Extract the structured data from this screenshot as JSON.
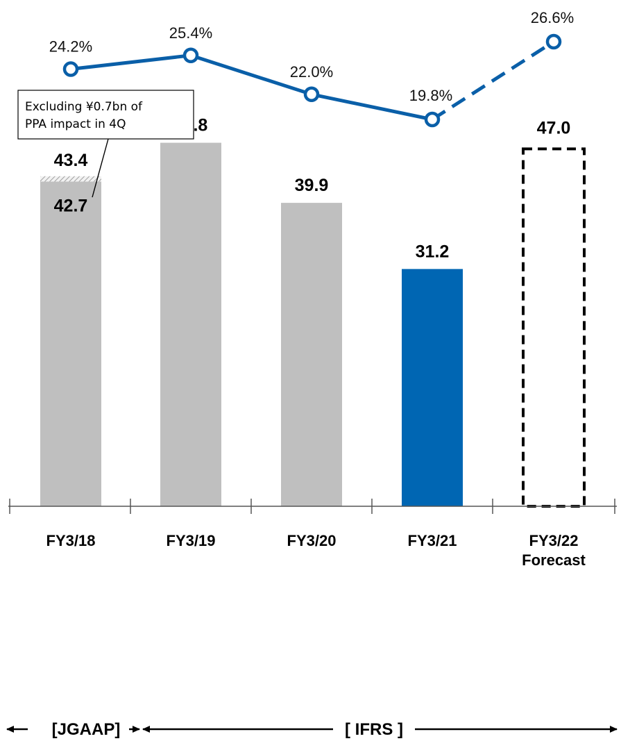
{
  "chart_data": {
    "type": "bar",
    "categories": [
      "FY3/18",
      "FY3/19",
      "FY3/20",
      "FY3/21",
      "FY3/22"
    ],
    "category_sublabels": [
      "",
      "",
      "",
      "",
      "Forecast"
    ],
    "values": [
      42.7,
      47.8,
      39.9,
      31.2,
      47.0
    ],
    "value_labels": [
      "42.7",
      "47.8",
      "39.9",
      "31.2",
      "47.0"
    ],
    "adjusted": {
      "category": "FY3/18",
      "value": 43.4,
      "label": "43.4"
    },
    "bar_styles": [
      "actual",
      "actual",
      "actual",
      "highlight",
      "forecast"
    ],
    "line_series": {
      "values": [
        24.2,
        25.4,
        22.0,
        19.8,
        26.6
      ],
      "labels": [
        "24.2%",
        "25.4%",
        "22.0%",
        "19.8%",
        "26.6%"
      ],
      "forecast_from_index": 3
    },
    "annotation": {
      "lines": [
        "Excluding ¥0.7bn of",
        "PPA impact in 4Q"
      ]
    },
    "standards": {
      "jgaap": "[JGAAP]",
      "ifrs": "[ IFRS ]"
    },
    "colors": {
      "actual_bar": "#bfbfbf",
      "highlight_bar": "#0066b3",
      "line": "#0a5fa8",
      "forecast_outline": "#000000"
    },
    "ylim": [
      0,
      52
    ],
    "line_ylim": [
      15,
      28
    ]
  }
}
